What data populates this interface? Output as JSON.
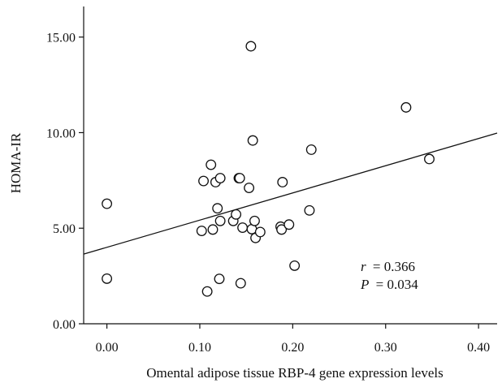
{
  "chart_data": {
    "type": "scatter",
    "xlabel": "Omental adipose tissue RBP-4 gene expression levels",
    "ylabel": "HOMA-IR",
    "xlim": [
      -0.025,
      0.42
    ],
    "ylim": [
      0,
      16.6
    ],
    "x_ticks": [
      0.0,
      0.1,
      0.2,
      0.3,
      0.4
    ],
    "x_tick_labels": [
      "0.00",
      "0.10",
      "0.20",
      "0.30",
      "0.40"
    ],
    "y_ticks": [
      0,
      5,
      10,
      15
    ],
    "y_tick_labels": [
      "0.00",
      "5.00",
      "10.00",
      "15.00"
    ],
    "grid": false,
    "points": [
      {
        "x": 0.0,
        "y": 6.28
      },
      {
        "x": 0.0,
        "y": 2.36
      },
      {
        "x": 0.102,
        "y": 4.86
      },
      {
        "x": 0.104,
        "y": 7.47
      },
      {
        "x": 0.108,
        "y": 1.69
      },
      {
        "x": 0.112,
        "y": 8.32
      },
      {
        "x": 0.114,
        "y": 4.93
      },
      {
        "x": 0.117,
        "y": 7.41
      },
      {
        "x": 0.119,
        "y": 6.04
      },
      {
        "x": 0.121,
        "y": 2.35
      },
      {
        "x": 0.122,
        "y": 5.38
      },
      {
        "x": 0.122,
        "y": 7.62
      },
      {
        "x": 0.136,
        "y": 5.38
      },
      {
        "x": 0.139,
        "y": 5.72
      },
      {
        "x": 0.142,
        "y": 7.62
      },
      {
        "x": 0.143,
        "y": 7.62
      },
      {
        "x": 0.144,
        "y": 2.12
      },
      {
        "x": 0.146,
        "y": 5.03
      },
      {
        "x": 0.153,
        "y": 7.11
      },
      {
        "x": 0.155,
        "y": 14.52
      },
      {
        "x": 0.156,
        "y": 4.95
      },
      {
        "x": 0.157,
        "y": 9.59
      },
      {
        "x": 0.159,
        "y": 5.38
      },
      {
        "x": 0.16,
        "y": 4.49
      },
      {
        "x": 0.165,
        "y": 4.8
      },
      {
        "x": 0.187,
        "y": 5.08
      },
      {
        "x": 0.188,
        "y": 4.93
      },
      {
        "x": 0.189,
        "y": 7.41
      },
      {
        "x": 0.196,
        "y": 5.19
      },
      {
        "x": 0.202,
        "y": 3.04
      },
      {
        "x": 0.218,
        "y": 5.93
      },
      {
        "x": 0.22,
        "y": 9.11
      },
      {
        "x": 0.322,
        "y": 11.32
      },
      {
        "x": 0.347,
        "y": 8.62
      }
    ],
    "trend_line": {
      "intercept": 4.0,
      "slope": 14.23
    },
    "annotations": {
      "r_symbol": "r",
      "r_value": "= 0.366",
      "p_symbol": "P",
      "p_value": "= 0.034"
    },
    "colors": {
      "axis": "#111111",
      "marker_stroke": "#111111",
      "marker_fill": "#ffffff",
      "line": "#111111"
    }
  }
}
